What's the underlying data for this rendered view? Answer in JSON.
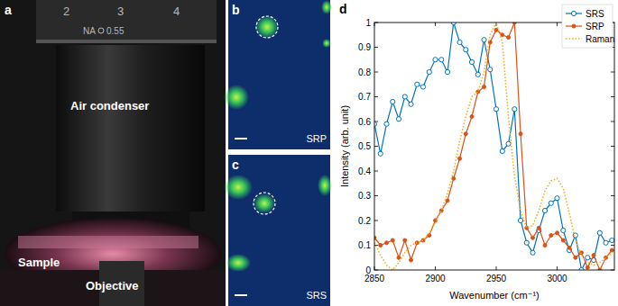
{
  "figure": {
    "panel_labels": [
      "a",
      "b",
      "c",
      "d"
    ],
    "photo_labels": [
      "Air condenser",
      "Sample",
      "Objective"
    ],
    "dial_labels": [
      "2",
      "3",
      "4",
      "NA",
      "0.55"
    ],
    "image_labels": [
      "SRP",
      "SRS"
    ]
  },
  "chart_data": {
    "type": "line",
    "xlabel": "Wavenumber (cm⁻¹)",
    "ylabel": "Intensity (arb. unit)",
    "x": [
      2850,
      2855,
      2860,
      2865,
      2870,
      2875,
      2880,
      2885,
      2890,
      2895,
      2900,
      2905,
      2910,
      2915,
      2920,
      2925,
      2930,
      2935,
      2940,
      2945,
      2950,
      2955,
      2960,
      2965,
      2970,
      2975,
      2980,
      2985,
      2990,
      2995,
      3000,
      3005,
      3010,
      3015,
      3020,
      3025,
      3030,
      3035,
      3040,
      3045
    ],
    "xlim": [
      2850,
      3047
    ],
    "xticks": [
      2850,
      2900,
      2950,
      3000
    ],
    "ylim": [
      0,
      1
    ],
    "yticks": [
      0,
      0.1,
      0.2,
      0.3,
      0.4,
      0.5,
      0.6,
      0.7,
      0.8,
      0.9,
      1
    ],
    "legend": "top-right",
    "series": [
      {
        "name": "SRS",
        "color": "#0072bd",
        "marker": "circle-open",
        "line_style": "solid",
        "values": [
          0.59,
          0.47,
          0.59,
          0.68,
          0.61,
          0.7,
          0.67,
          0.75,
          0.74,
          0.8,
          0.85,
          0.85,
          0.8,
          1.0,
          0.92,
          0.89,
          0.84,
          0.79,
          0.93,
          0.81,
          0.65,
          0.48,
          0.51,
          0.65,
          0.2,
          0.11,
          0.07,
          0.16,
          0.24,
          0.27,
          0.29,
          0.16,
          0.08,
          0.14,
          0.0,
          0.05,
          0.04,
          0.15,
          0.11,
          0.12
        ]
      },
      {
        "name": "SRP",
        "color": "#d95319",
        "marker": "circle",
        "line_style": "solid",
        "values": [
          0.13,
          0.1,
          0.11,
          0.12,
          0.05,
          0.12,
          0.04,
          0.11,
          0.12,
          0.14,
          0.2,
          0.24,
          0.28,
          0.37,
          0.45,
          0.55,
          0.62,
          0.72,
          0.74,
          0.92,
          0.97,
          0.95,
          0.94,
          1.0,
          0.55,
          0.17,
          0.13,
          0.17,
          0.1,
          0.14,
          0.15,
          0.12,
          0.09,
          0.05,
          0.07,
          0.01,
          0.06,
          0.0,
          0.05,
          0.08
        ]
      },
      {
        "name": "Raman",
        "color": "#edb120",
        "marker": "none",
        "line_style": "dotted",
        "values": [
          0.11,
          0.06,
          0.02,
          0.0,
          0.03,
          0.07,
          0.1,
          0.11,
          0.12,
          0.15,
          0.19,
          0.24,
          0.31,
          0.4,
          0.52,
          0.62,
          0.7,
          0.72,
          0.8,
          0.95,
          1.0,
          0.92,
          0.62,
          0.38,
          0.24,
          0.17,
          0.18,
          0.24,
          0.32,
          0.36,
          0.37,
          0.33,
          0.23,
          0.12,
          0.06,
          0.03,
          0.02,
          0.03,
          0.05,
          0.07
        ]
      }
    ]
  }
}
